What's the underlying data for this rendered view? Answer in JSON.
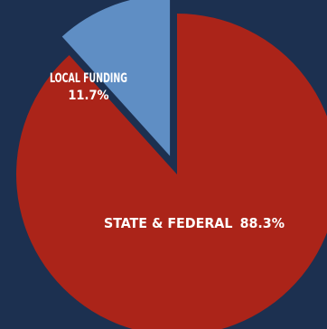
{
  "chart_data": {
    "type": "pie",
    "title": "",
    "slices": [
      {
        "label": "STATE & FEDERAL",
        "value": 88.3,
        "value_text": "88.3%",
        "color": "#ab2419",
        "exploded": false
      },
      {
        "label": "LOCAL FUNDING",
        "value": 11.7,
        "value_text": "11.7%",
        "color": "#5f8ec4",
        "exploded": true
      }
    ],
    "background_color": "#1c3050"
  }
}
